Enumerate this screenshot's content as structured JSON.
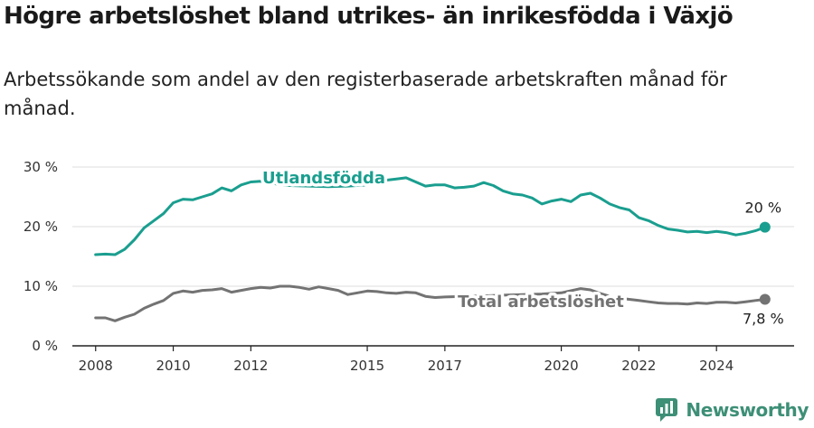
{
  "title": "Högre arbetslöshet bland utrikes- än inrikesfödda i Växjö",
  "subtitle": "Arbetssökande som andel av den registerbaserade arbetskraften månad för månad.",
  "brand": {
    "name": "Newsworthy",
    "logo_icon": "newsworthy-logo-icon"
  },
  "colors": {
    "foreign_born": "#1a9e8f",
    "total": "#737373",
    "grid": "#dddddd",
    "axis": "#222222"
  },
  "chart_data": {
    "type": "line",
    "title": "Högre arbetslöshet bland utrikes- än inrikesfödda i Växjö",
    "ylabel": "",
    "xlabel": "",
    "ylim": [
      0,
      30
    ],
    "xlim": [
      2007.4,
      2026.0
    ],
    "y_ticks": [
      0,
      10,
      20,
      30
    ],
    "y_tick_labels": [
      "0 %",
      "10 %",
      "20 %",
      "30 %"
    ],
    "x_ticks": [
      2008,
      2010,
      2012,
      2015,
      2017,
      2020,
      2022,
      2024
    ],
    "x_tick_labels": [
      "2008",
      "2010",
      "2012",
      "2015",
      "2017",
      "2020",
      "2022",
      "2024"
    ],
    "grid": true,
    "series": [
      {
        "name": "Utlandsfödda",
        "color": "#1a9e8f",
        "end_label": "20 %",
        "points": [
          [
            2008.0,
            15.3
          ],
          [
            2008.25,
            15.4
          ],
          [
            2008.5,
            15.3
          ],
          [
            2008.75,
            16.2
          ],
          [
            2009.0,
            17.8
          ],
          [
            2009.25,
            19.8
          ],
          [
            2009.5,
            21.0
          ],
          [
            2009.75,
            22.2
          ],
          [
            2010.0,
            24.0
          ],
          [
            2010.25,
            24.6
          ],
          [
            2010.5,
            24.5
          ],
          [
            2010.75,
            25.0
          ],
          [
            2011.0,
            25.5
          ],
          [
            2011.25,
            26.5
          ],
          [
            2011.5,
            26.0
          ],
          [
            2011.75,
            27.0
          ],
          [
            2012.0,
            27.5
          ],
          [
            2012.25,
            27.6
          ],
          [
            2012.5,
            27.4
          ],
          [
            2012.75,
            27.0
          ],
          [
            2013.0,
            26.9
          ],
          [
            2013.5,
            26.8
          ],
          [
            2014.0,
            26.7
          ],
          [
            2014.5,
            26.8
          ],
          [
            2015.0,
            27.0
          ],
          [
            2015.5,
            27.8
          ],
          [
            2015.75,
            28.0
          ],
          [
            2016.0,
            28.2
          ],
          [
            2016.25,
            27.5
          ],
          [
            2016.5,
            26.8
          ],
          [
            2016.75,
            27.0
          ],
          [
            2017.0,
            27.0
          ],
          [
            2017.25,
            26.5
          ],
          [
            2017.5,
            26.6
          ],
          [
            2017.75,
            26.8
          ],
          [
            2018.0,
            27.4
          ],
          [
            2018.25,
            26.9
          ],
          [
            2018.5,
            26.0
          ],
          [
            2018.75,
            25.5
          ],
          [
            2019.0,
            25.3
          ],
          [
            2019.25,
            24.8
          ],
          [
            2019.5,
            23.8
          ],
          [
            2019.75,
            24.3
          ],
          [
            2020.0,
            24.6
          ],
          [
            2020.25,
            24.2
          ],
          [
            2020.5,
            25.3
          ],
          [
            2020.75,
            25.6
          ],
          [
            2021.0,
            24.8
          ],
          [
            2021.25,
            23.8
          ],
          [
            2021.5,
            23.2
          ],
          [
            2021.75,
            22.8
          ],
          [
            2022.0,
            21.5
          ],
          [
            2022.25,
            21.0
          ],
          [
            2022.5,
            20.2
          ],
          [
            2022.75,
            19.6
          ],
          [
            2023.0,
            19.4
          ],
          [
            2023.25,
            19.1
          ],
          [
            2023.5,
            19.2
          ],
          [
            2023.75,
            19.0
          ],
          [
            2024.0,
            19.2
          ],
          [
            2024.25,
            19.0
          ],
          [
            2024.5,
            18.6
          ],
          [
            2024.75,
            18.9
          ],
          [
            2025.0,
            19.3
          ],
          [
            2025.25,
            19.9
          ]
        ]
      },
      {
        "name": "Total arbetslöshet",
        "color": "#737373",
        "end_label": "7,8 %",
        "points": [
          [
            2008.0,
            4.7
          ],
          [
            2008.25,
            4.7
          ],
          [
            2008.5,
            4.2
          ],
          [
            2008.75,
            4.8
          ],
          [
            2009.0,
            5.3
          ],
          [
            2009.25,
            6.3
          ],
          [
            2009.5,
            7.0
          ],
          [
            2009.75,
            7.6
          ],
          [
            2010.0,
            8.8
          ],
          [
            2010.25,
            9.2
          ],
          [
            2010.5,
            9.0
          ],
          [
            2010.75,
            9.3
          ],
          [
            2011.0,
            9.4
          ],
          [
            2011.25,
            9.6
          ],
          [
            2011.5,
            9.0
          ],
          [
            2011.75,
            9.3
          ],
          [
            2012.0,
            9.6
          ],
          [
            2012.25,
            9.8
          ],
          [
            2012.5,
            9.7
          ],
          [
            2012.75,
            10.0
          ],
          [
            2013.0,
            10.0
          ],
          [
            2013.25,
            9.8
          ],
          [
            2013.5,
            9.5
          ],
          [
            2013.75,
            9.9
          ],
          [
            2014.0,
            9.6
          ],
          [
            2014.25,
            9.3
          ],
          [
            2014.5,
            8.6
          ],
          [
            2014.75,
            8.9
          ],
          [
            2015.0,
            9.2
          ],
          [
            2015.25,
            9.1
          ],
          [
            2015.5,
            8.9
          ],
          [
            2015.75,
            8.8
          ],
          [
            2016.0,
            9.0
          ],
          [
            2016.25,
            8.9
          ],
          [
            2016.5,
            8.3
          ],
          [
            2016.75,
            8.1
          ],
          [
            2017.0,
            8.2
          ],
          [
            2017.5,
            8.3
          ],
          [
            2018.0,
            8.4
          ],
          [
            2018.5,
            8.5
          ],
          [
            2019.0,
            8.6
          ],
          [
            2019.5,
            8.7
          ],
          [
            2020.0,
            8.9
          ],
          [
            2020.5,
            9.6
          ],
          [
            2020.75,
            9.4
          ],
          [
            2021.0,
            8.8
          ],
          [
            2021.25,
            8.3
          ],
          [
            2021.5,
            8.0
          ],
          [
            2021.75,
            7.8
          ],
          [
            2022.0,
            7.6
          ],
          [
            2022.25,
            7.4
          ],
          [
            2022.5,
            7.2
          ],
          [
            2022.75,
            7.1
          ],
          [
            2023.0,
            7.1
          ],
          [
            2023.25,
            7.0
          ],
          [
            2023.5,
            7.2
          ],
          [
            2023.75,
            7.1
          ],
          [
            2024.0,
            7.3
          ],
          [
            2024.25,
            7.3
          ],
          [
            2024.5,
            7.2
          ],
          [
            2024.75,
            7.4
          ],
          [
            2025.0,
            7.6
          ],
          [
            2025.25,
            7.8
          ]
        ]
      }
    ]
  }
}
